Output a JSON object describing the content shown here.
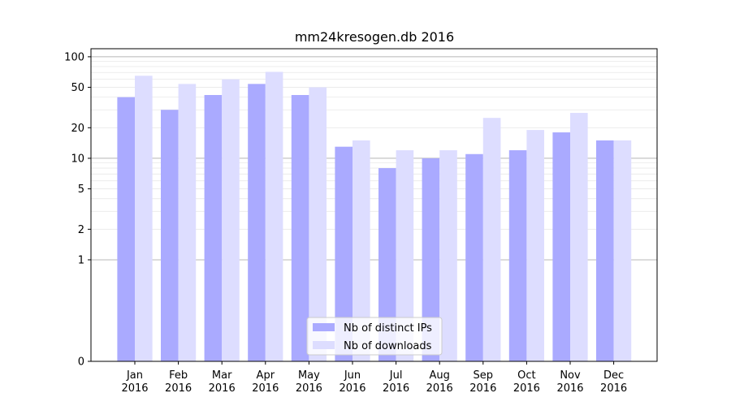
{
  "chart_data": {
    "type": "bar",
    "title": "mm24kresogen.db 2016",
    "xlabel": "",
    "ylabel": "",
    "yscale": "symlog",
    "ylim": [
      0,
      120
    ],
    "grid": true,
    "legend_position": "bottom-center",
    "categories": [
      [
        "Jan",
        "2016"
      ],
      [
        "Feb",
        "2016"
      ],
      [
        "Mar",
        "2016"
      ],
      [
        "Apr",
        "2016"
      ],
      [
        "May",
        "2016"
      ],
      [
        "Jun",
        "2016"
      ],
      [
        "Jul",
        "2016"
      ],
      [
        "Aug",
        "2016"
      ],
      [
        "Sep",
        "2016"
      ],
      [
        "Oct",
        "2016"
      ],
      [
        "Nov",
        "2016"
      ],
      [
        "Dec",
        "2016"
      ]
    ],
    "yticks": [
      {
        "value": 0,
        "label": "0"
      },
      {
        "value": 1,
        "label": "1"
      },
      {
        "value": 2,
        "label": "2"
      },
      {
        "value": 5,
        "label": "5"
      },
      {
        "value": 10,
        "label": "10"
      },
      {
        "value": 20,
        "label": "20"
      },
      {
        "value": 50,
        "label": "50"
      },
      {
        "value": 100,
        "label": "100"
      }
    ],
    "series": [
      {
        "name": "Nb of distinct IPs",
        "color": "#aaaaff",
        "values": [
          40,
          30,
          42,
          54,
          42,
          13,
          8,
          10,
          11,
          12,
          18,
          15
        ]
      },
      {
        "name": "Nb of downloads",
        "color": "#ddddff",
        "values": [
          65,
          54,
          60,
          71,
          50,
          15,
          12,
          12,
          25,
          19,
          28,
          15
        ]
      }
    ]
  }
}
